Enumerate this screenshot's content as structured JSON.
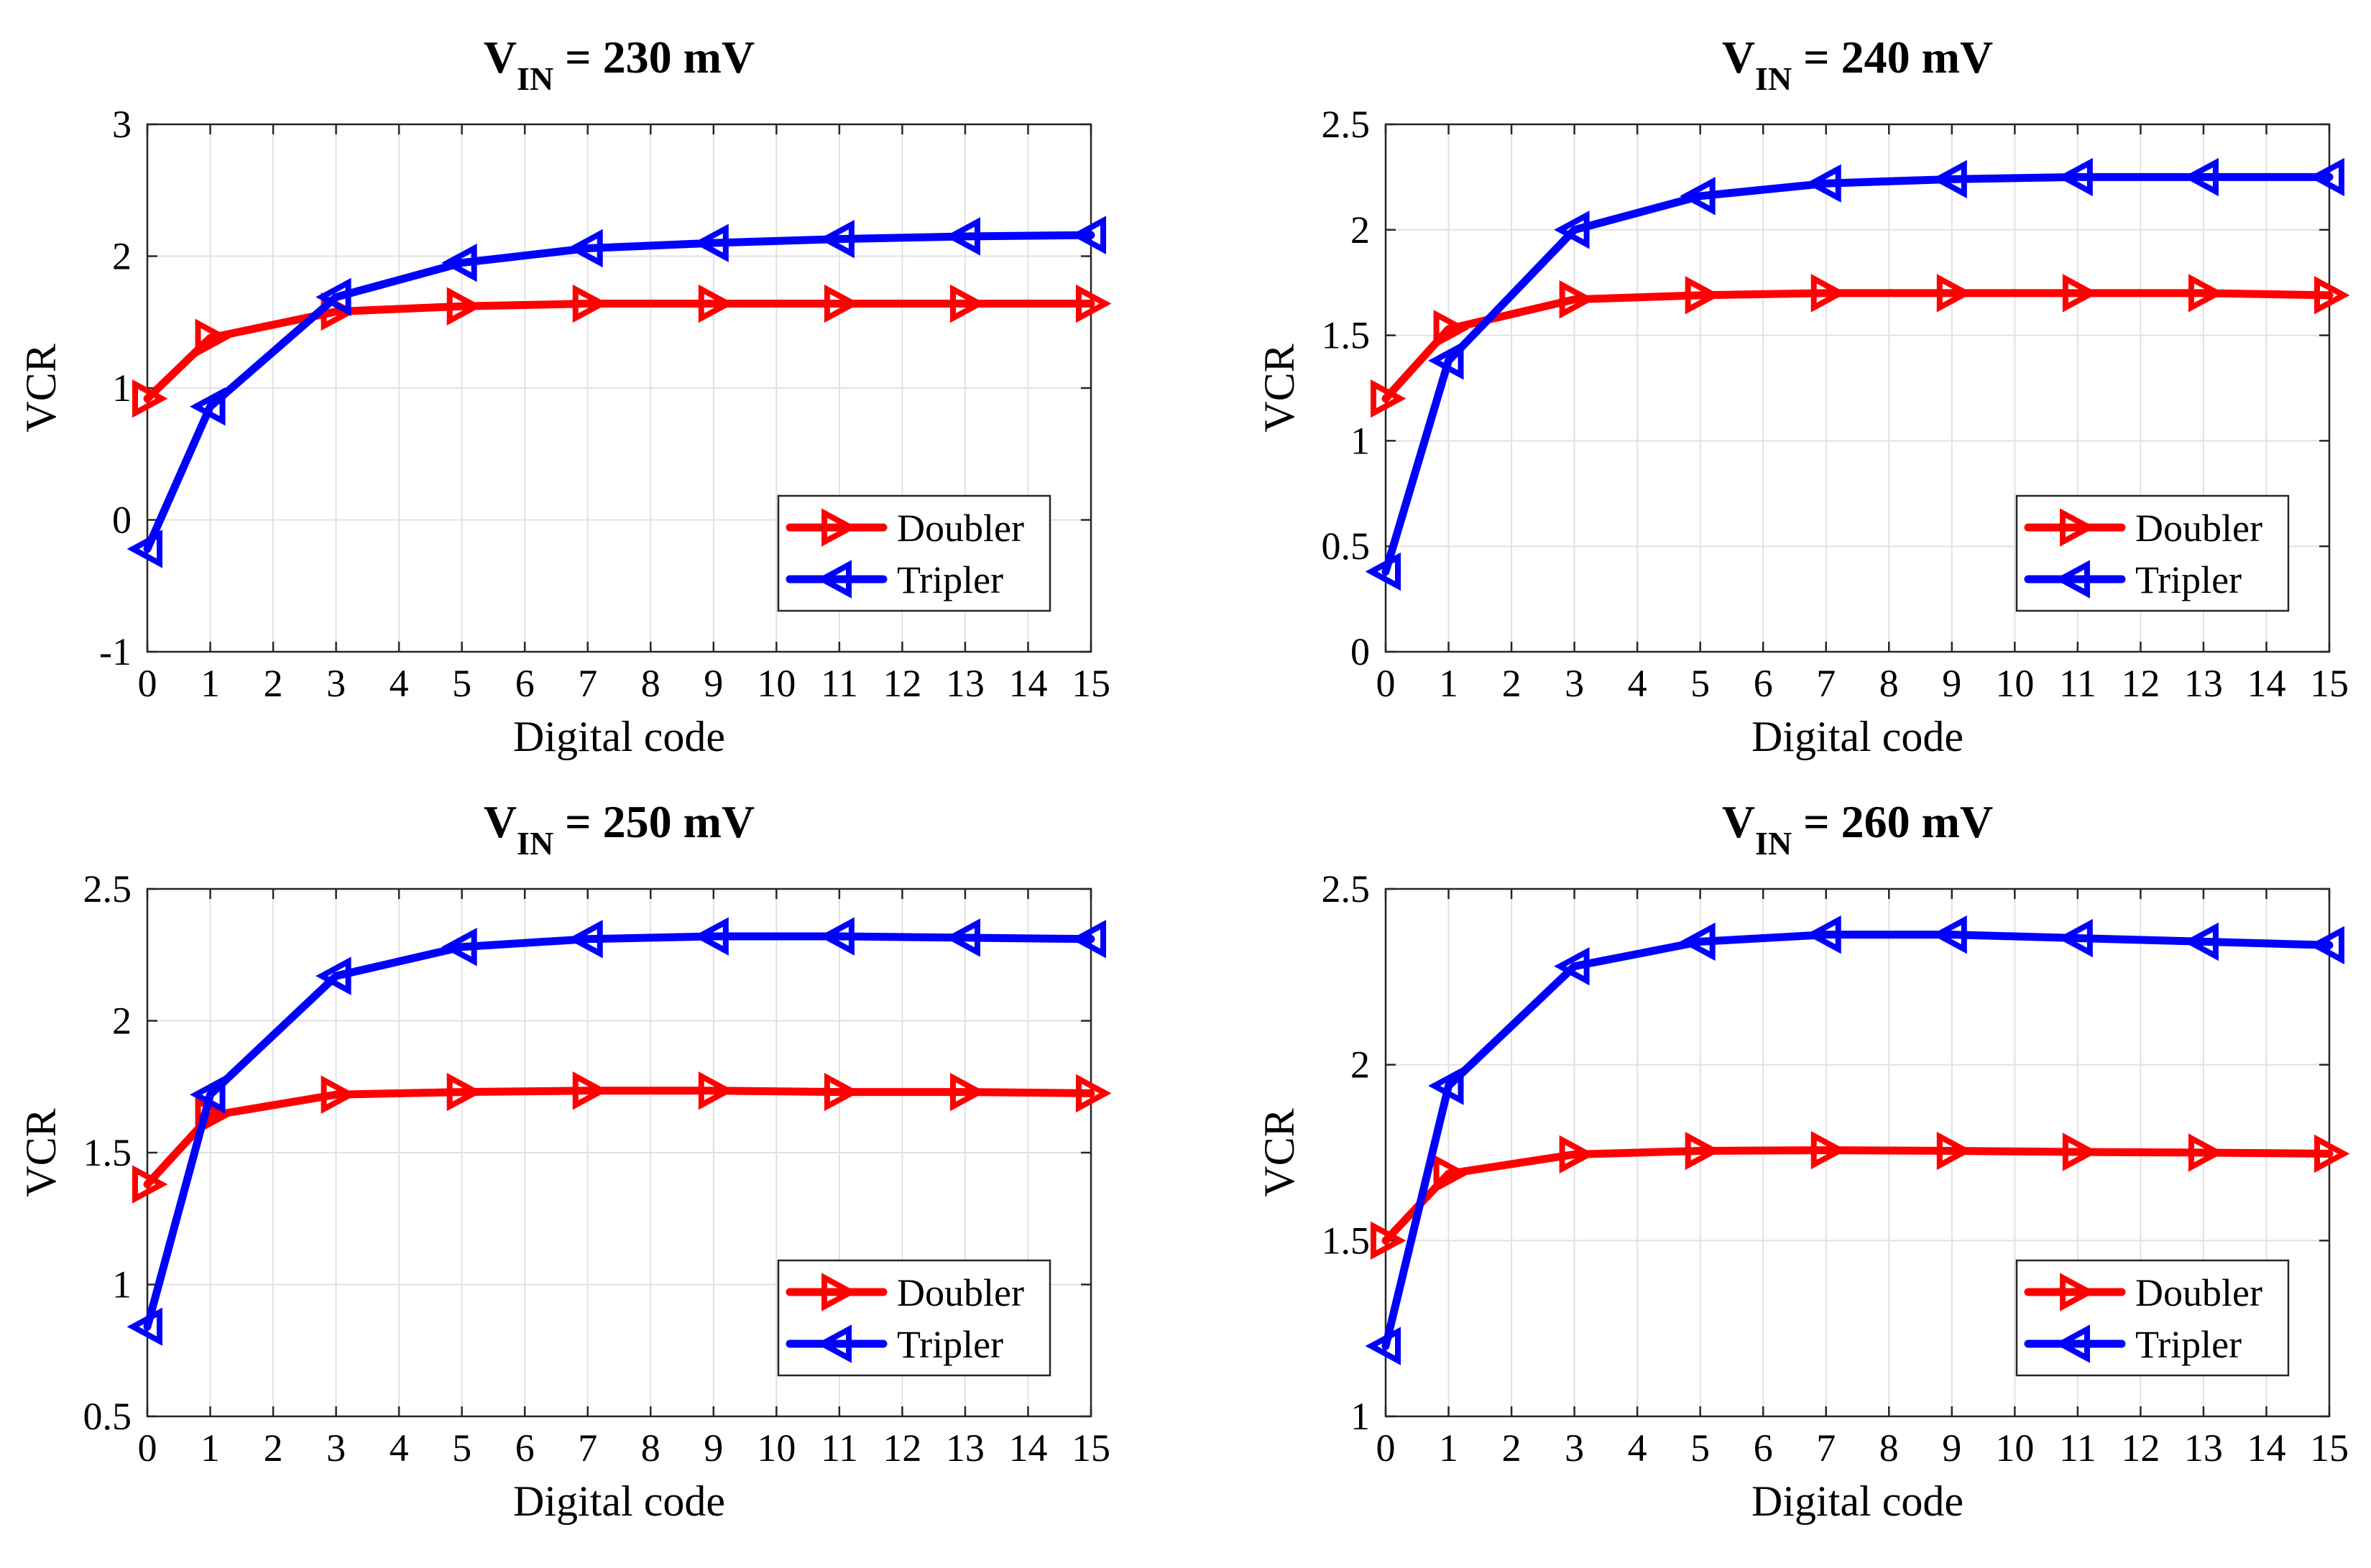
{
  "figure": {
    "colors": {
      "doubler": "#ff0000",
      "tripler": "#0000ff",
      "grid": "#e1e1e1",
      "axis": "#262626"
    }
  },
  "chart_data": [
    {
      "type": "line",
      "title": {
        "main": "V",
        "sub": "IN",
        "rest": "= 230 mV"
      },
      "xlabel": "Digital code",
      "ylabel": "VCR",
      "xlim": [
        0,
        15
      ],
      "ylim": [
        -1,
        3
      ],
      "x_ticks": [
        0,
        1,
        2,
        3,
        4,
        5,
        6,
        7,
        8,
        9,
        10,
        11,
        12,
        13,
        14,
        15
      ],
      "y_ticks": [
        "-1",
        "0",
        "1",
        "2",
        "3"
      ],
      "y_tick_values": [
        -1,
        0,
        1,
        2,
        3
      ],
      "legend": {
        "position": "bottom-right",
        "entries": [
          "Doubler",
          "Tripler"
        ]
      },
      "series": [
        {
          "name": "Doubler",
          "marker": "triangle-right",
          "x": [
            0,
            1,
            3,
            5,
            7,
            9,
            11,
            13,
            15
          ],
          "values": [
            0.92,
            1.38,
            1.58,
            1.62,
            1.64,
            1.64,
            1.64,
            1.64,
            1.64
          ]
        },
        {
          "name": "Tripler",
          "marker": "triangle-left",
          "x": [
            0,
            1,
            3,
            5,
            7,
            9,
            11,
            13,
            15
          ],
          "values": [
            -0.22,
            0.86,
            1.69,
            1.95,
            2.06,
            2.1,
            2.13,
            2.15,
            2.16
          ]
        }
      ]
    },
    {
      "type": "line",
      "title": {
        "main": "V",
        "sub": "IN",
        "rest": "= 240 mV"
      },
      "xlabel": "Digital code",
      "ylabel": "VCR",
      "xlim": [
        0,
        15
      ],
      "ylim": [
        0,
        2.5
      ],
      "x_ticks": [
        0,
        1,
        2,
        3,
        4,
        5,
        6,
        7,
        8,
        9,
        10,
        11,
        12,
        13,
        14,
        15
      ],
      "y_ticks": [
        "0",
        "0.5",
        "1",
        "1.5",
        "2",
        "2.5"
      ],
      "y_tick_values": [
        0,
        0.5,
        1,
        1.5,
        2,
        2.5
      ],
      "legend": {
        "position": "bottom-right",
        "entries": [
          "Doubler",
          "Tripler"
        ]
      },
      "series": [
        {
          "name": "Doubler",
          "marker": "triangle-right",
          "x": [
            0,
            1,
            3,
            5,
            7,
            9,
            11,
            13,
            15
          ],
          "values": [
            1.2,
            1.53,
            1.67,
            1.69,
            1.7,
            1.7,
            1.7,
            1.7,
            1.69
          ]
        },
        {
          "name": "Tripler",
          "marker": "triangle-left",
          "x": [
            0,
            1,
            3,
            5,
            7,
            9,
            11,
            13,
            15
          ],
          "values": [
            0.38,
            1.38,
            2.0,
            2.16,
            2.22,
            2.24,
            2.25,
            2.25,
            2.25
          ]
        }
      ]
    },
    {
      "type": "line",
      "title": {
        "main": "V",
        "sub": "IN",
        "rest": "= 250 mV"
      },
      "xlabel": "Digital code",
      "ylabel": "VCR",
      "xlim": [
        0,
        15
      ],
      "ylim": [
        0.5,
        2.5
      ],
      "x_ticks": [
        0,
        1,
        2,
        3,
        4,
        5,
        6,
        7,
        8,
        9,
        10,
        11,
        12,
        13,
        14,
        15
      ],
      "y_ticks": [
        "0.5",
        "1",
        "1.5",
        "2",
        "2.5"
      ],
      "y_tick_values": [
        0.5,
        1,
        1.5,
        2,
        2.5
      ],
      "legend": {
        "position": "bottom-right",
        "entries": [
          "Doubler",
          "Tripler"
        ]
      },
      "series": [
        {
          "name": "Doubler",
          "marker": "triangle-right",
          "x": [
            0,
            1,
            3,
            5,
            7,
            9,
            11,
            13,
            15
          ],
          "values": [
            1.38,
            1.64,
            1.72,
            1.73,
            1.735,
            1.735,
            1.73,
            1.73,
            1.725
          ]
        },
        {
          "name": "Tripler",
          "marker": "triangle-left",
          "x": [
            0,
            1,
            3,
            5,
            7,
            9,
            11,
            13,
            15
          ],
          "values": [
            0.84,
            1.72,
            2.17,
            2.28,
            2.31,
            2.32,
            2.32,
            2.315,
            2.31
          ]
        }
      ]
    },
    {
      "type": "line",
      "title": {
        "main": "V",
        "sub": "IN",
        "rest": "= 260 mV"
      },
      "xlabel": "Digital code",
      "ylabel": "VCR",
      "xlim": [
        0,
        15
      ],
      "ylim": [
        1,
        2.5
      ],
      "x_ticks": [
        0,
        1,
        2,
        3,
        4,
        5,
        6,
        7,
        8,
        9,
        10,
        11,
        12,
        13,
        14,
        15
      ],
      "y_ticks": [
        "1",
        "1.5",
        "2",
        "2.5"
      ],
      "y_tick_values": [
        1,
        1.5,
        2,
        2.5
      ],
      "legend": {
        "position": "bottom-right",
        "entries": [
          "Doubler",
          "Tripler"
        ]
      },
      "series": [
        {
          "name": "Doubler",
          "marker": "triangle-right",
          "x": [
            0,
            1,
            3,
            5,
            7,
            9,
            11,
            13,
            15
          ],
          "values": [
            1.5,
            1.69,
            1.745,
            1.755,
            1.757,
            1.755,
            1.752,
            1.75,
            1.747
          ]
        },
        {
          "name": "Tripler",
          "marker": "triangle-left",
          "x": [
            0,
            1,
            3,
            5,
            7,
            9,
            11,
            13,
            15
          ],
          "values": [
            1.2,
            1.94,
            2.28,
            2.35,
            2.37,
            2.37,
            2.36,
            2.35,
            2.34
          ]
        }
      ]
    }
  ]
}
